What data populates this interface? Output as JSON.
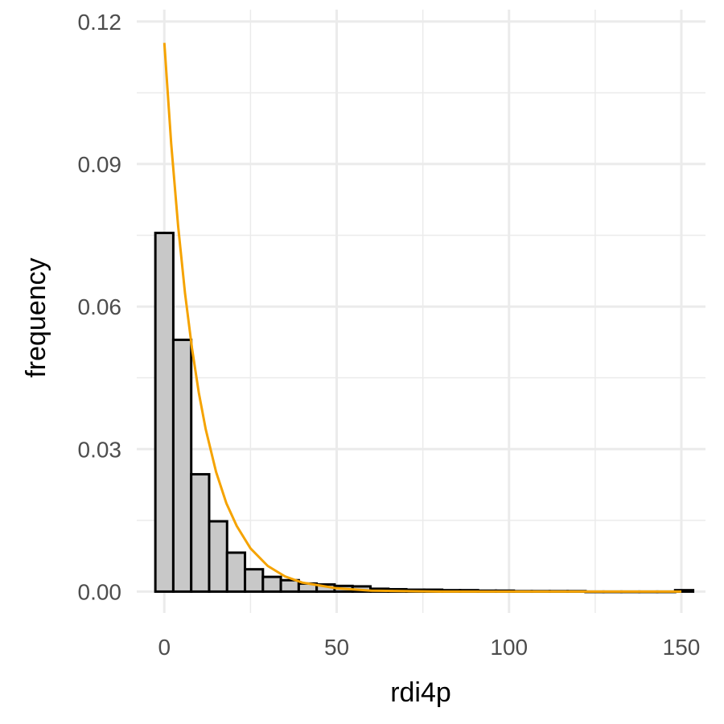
{
  "chart_data": {
    "type": "bar",
    "xlabel": "rdi4p",
    "ylabel": "frequency",
    "xlim": [
      -8,
      157
    ],
    "ylim": [
      -0.0045,
      0.1225
    ],
    "x_ticks": [
      0,
      50,
      100,
      150
    ],
    "y_ticks": [
      0.0,
      0.03,
      0.06,
      0.09,
      0.12
    ],
    "x_tick_labels": [
      "0",
      "50",
      "100",
      "150"
    ],
    "y_tick_labels": [
      "0.00",
      "0.03",
      "0.06",
      "0.09",
      "0.12"
    ],
    "grid": true,
    "legend": "none",
    "bin_width": 5.2,
    "bin_centers": [
      0,
      5.2,
      10.4,
      15.6,
      20.8,
      26.0,
      31.2,
      36.4,
      41.6,
      46.8,
      52.0,
      57.2,
      62.4,
      67.6,
      72.8,
      78.0,
      83.2,
      88.4,
      93.6,
      98.8,
      104.0,
      109.2,
      114.4,
      119.6,
      124.8,
      130.0,
      135.2,
      140.4,
      145.6,
      150.8
    ],
    "values": [
      0.0755,
      0.053,
      0.0247,
      0.0148,
      0.0082,
      0.0047,
      0.0031,
      0.0024,
      0.0017,
      0.0015,
      0.0012,
      0.0011,
      0.0006,
      0.0005,
      0.0004,
      0.0004,
      0.0003,
      0.0003,
      0.0002,
      0.0002,
      0.0001,
      0.0001,
      0.0001,
      0.0001,
      0.0,
      0.0,
      0.0,
      0.0,
      0.0,
      0.0003
    ],
    "curve": {
      "x": [
        0,
        2,
        4,
        6,
        8,
        10,
        12,
        15,
        18,
        21,
        25,
        30,
        35,
        40,
        50,
        60,
        80,
        100,
        125,
        150
      ],
      "y": [
        0.1155,
        0.0943,
        0.077,
        0.0628,
        0.0513,
        0.0419,
        0.0342,
        0.0252,
        0.0186,
        0.0138,
        0.0091,
        0.0054,
        0.0032,
        0.0019,
        0.0007,
        0.0002,
        0.0,
        0.0,
        0.0,
        0.0
      ]
    },
    "colors": {
      "bar_fill": "#c8c8c8",
      "bar_stroke": "#000000",
      "curve": "#f5a300",
      "grid": "#ebebeb"
    }
  }
}
